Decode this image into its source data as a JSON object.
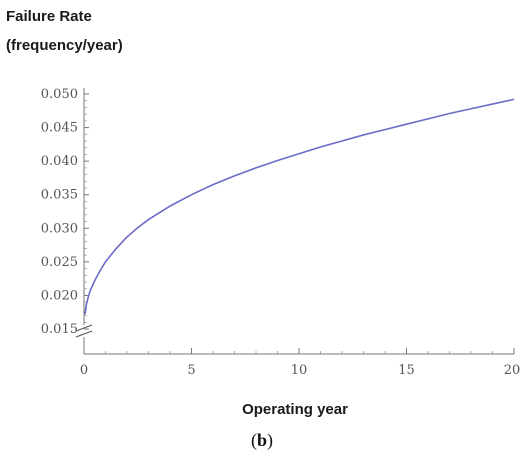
{
  "chart_data": {
    "type": "line",
    "title": "",
    "ylabel_lines": [
      "Failure Rate",
      "(frequency/year)"
    ],
    "xlabel": "Operating year",
    "panel_label": {
      "open": "(",
      "letter": "b",
      "close": ")"
    },
    "xlim": [
      0,
      20
    ],
    "ylim": [
      0.015,
      0.05
    ],
    "y_axis_break": true,
    "x_ticks": [
      "0",
      "5",
      "10",
      "15",
      "20"
    ],
    "y_ticks": [
      "0.015",
      "0.020",
      "0.025",
      "0.030",
      "0.035",
      "0.040",
      "0.045",
      "0.050"
    ],
    "grid": false,
    "line_color": "#6b6bc8",
    "series": [
      {
        "x": [
          0.05,
          0.1,
          0.2,
          0.3,
          0.5,
          0.75,
          1,
          1.5,
          2,
          2.5,
          3,
          4,
          5,
          6,
          7,
          8,
          9,
          10,
          11,
          12,
          13,
          14,
          15,
          16,
          17,
          18,
          19,
          20
        ],
        "y": [
          0.0172,
          0.0185,
          0.0198,
          0.0208,
          0.0222,
          0.0237,
          0.025,
          0.027,
          0.0287,
          0.0301,
          0.0313,
          0.0333,
          0.035,
          0.0365,
          0.0378,
          0.039,
          0.0401,
          0.0411,
          0.0421,
          0.043,
          0.0439,
          0.0447,
          0.0455,
          0.0463,
          0.0471,
          0.0478,
          0.0485,
          0.0492
        ]
      }
    ]
  }
}
